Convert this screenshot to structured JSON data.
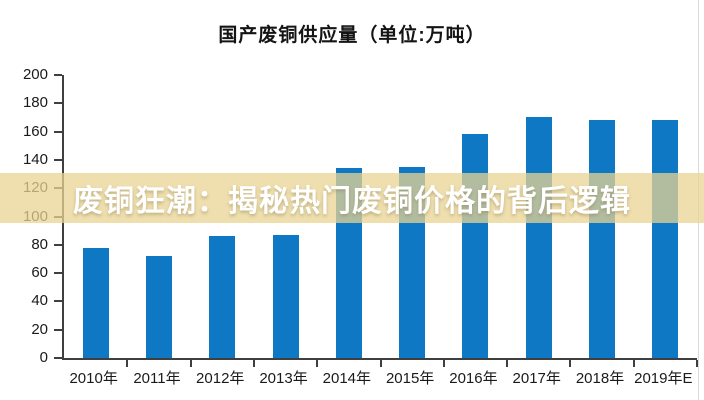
{
  "figure": {
    "title": "国产废铜供应量（单位:万吨）"
  },
  "overlay": {
    "text": "废铜狂潮：揭秘热门废铜价格的背后逻辑",
    "band_color": "#E9D494",
    "band_opacity": 0.75,
    "text_color": "#FFFFFF"
  },
  "chart_data": {
    "type": "bar",
    "title": "国产废铜供应量（单位:万吨）",
    "categories": [
      "2010年",
      "2011年",
      "2012年",
      "2013年",
      "2014年",
      "2015年",
      "2016年",
      "2017年",
      "2018年",
      "2019年E"
    ],
    "values": [
      78,
      72,
      86,
      87,
      134,
      135,
      158,
      170,
      168,
      168
    ],
    "xlabel": "",
    "ylabel": "",
    "ylim": [
      0,
      200
    ],
    "ytick_step": 20,
    "grid": false,
    "legend": "none",
    "bar_color": "#0F78C4",
    "axis_color": "#3F3F3F",
    "tick_label_color": "#1A1A1A"
  }
}
